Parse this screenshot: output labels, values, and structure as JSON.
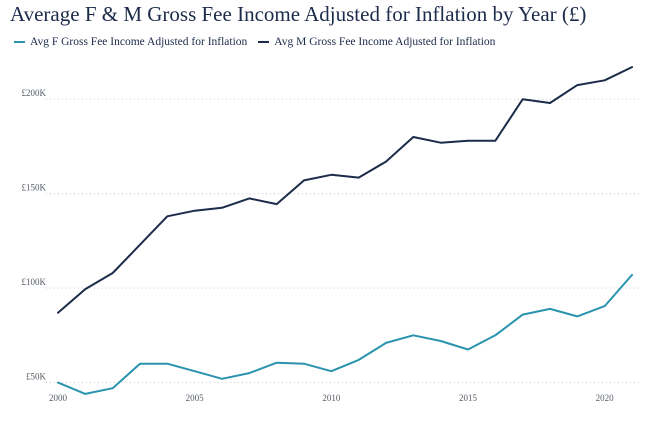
{
  "chart_data": {
    "type": "line",
    "title": "Average F & M Gross Fee Income Adjusted for Inflation by Year (£)",
    "xlabel": "",
    "ylabel": "",
    "x": [
      2000,
      2001,
      2002,
      2003,
      2004,
      2005,
      2006,
      2007,
      2008,
      2009,
      2010,
      2011,
      2012,
      2013,
      2014,
      2015,
      2016,
      2017,
      2018,
      2019,
      2020,
      2021
    ],
    "xlim": [
      2000,
      2021
    ],
    "ylim": [
      45000,
      225000
    ],
    "x_ticks": [
      "2000",
      "2005",
      "2010",
      "2015",
      "2020"
    ],
    "x_tick_values": [
      2000,
      2005,
      2010,
      2015,
      2020
    ],
    "y_ticks": [
      "£50K",
      "£100K",
      "£150K",
      "£200K"
    ],
    "y_tick_values": [
      50000,
      100000,
      150000,
      200000
    ],
    "grid": "horizontal dotted",
    "legend_position": "top-left",
    "series": [
      {
        "name": "Avg F Gross Fee Income Adjusted for Inflation",
        "color": "#2a93ae",
        "values": [
          50000,
          44000,
          47000,
          60000,
          60000,
          56000,
          52000,
          55000,
          60500,
          60000,
          56000,
          62000,
          71000,
          75000,
          72000,
          67500,
          75000,
          86000,
          89000,
          85000,
          90500,
          107000
        ]
      },
      {
        "name": "Avg M Gross Fee Income Adjusted for Inflation",
        "color": "#1c2b4a",
        "values": [
          87000,
          99500,
          108000,
          123000,
          138000,
          141000,
          142500,
          147500,
          144500,
          157000,
          160000,
          158500,
          167000,
          180000,
          177000,
          178000,
          178000,
          200000,
          198000,
          207500,
          210000,
          217000
        ]
      }
    ]
  }
}
